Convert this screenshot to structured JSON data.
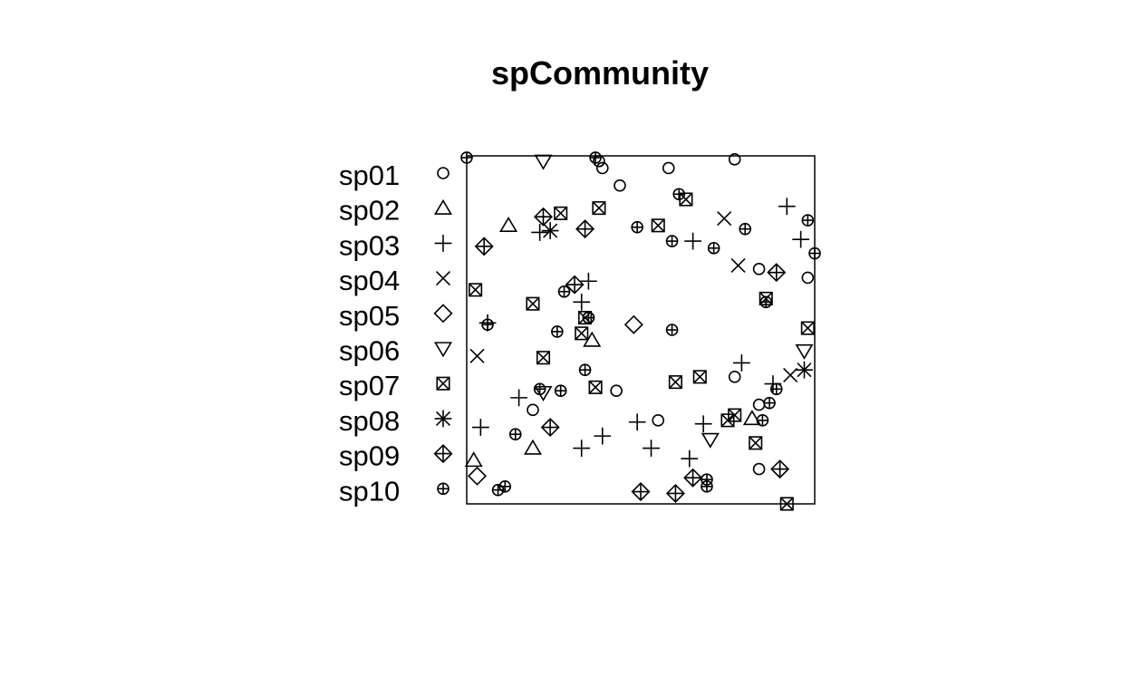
{
  "chart_data": {
    "type": "scatter",
    "title": "spCommunity",
    "xlabel": "",
    "ylabel": "",
    "xlim": [
      0,
      1
    ],
    "ylim": [
      0,
      1
    ],
    "axes": false,
    "grid": false,
    "legend_position": "left",
    "series": [
      {
        "name": "sp01",
        "symbol": "circle",
        "points": [
          [
            0.38,
            0.985
          ],
          [
            0.39,
            0.965
          ],
          [
            0.44,
            0.915
          ],
          [
            0.58,
            0.965
          ],
          [
            0.77,
            0.99
          ],
          [
            0.84,
            0.675
          ],
          [
            0.98,
            0.65
          ],
          [
            0.35,
            0.535
          ],
          [
            0.43,
            0.325
          ],
          [
            0.19,
            0.27
          ],
          [
            0.55,
            0.24
          ],
          [
            0.77,
            0.365
          ],
          [
            0.84,
            0.285
          ],
          [
            0.84,
            0.1
          ]
        ]
      },
      {
        "name": "sp02",
        "symbol": "triangle-up",
        "points": [
          [
            0.12,
            0.8
          ],
          [
            0.36,
            0.47
          ],
          [
            0.19,
            0.16
          ],
          [
            0.02,
            0.125
          ],
          [
            0.82,
            0.245
          ]
        ]
      },
      {
        "name": "sp03",
        "symbol": "plus",
        "points": [
          [
            0.92,
            0.855
          ],
          [
            0.96,
            0.76
          ],
          [
            0.65,
            0.755
          ],
          [
            0.21,
            0.78
          ],
          [
            0.35,
            0.64
          ],
          [
            0.33,
            0.58
          ],
          [
            0.06,
            0.52
          ],
          [
            0.79,
            0.405
          ],
          [
            0.88,
            0.345
          ],
          [
            0.15,
            0.305
          ],
          [
            0.04,
            0.22
          ],
          [
            0.49,
            0.235
          ],
          [
            0.68,
            0.23
          ],
          [
            0.39,
            0.195
          ],
          [
            0.33,
            0.16
          ],
          [
            0.53,
            0.16
          ],
          [
            0.64,
            0.13
          ]
        ]
      },
      {
        "name": "sp04",
        "symbol": "x",
        "points": [
          [
            0.74,
            0.82
          ],
          [
            0.78,
            0.685
          ],
          [
            0.03,
            0.425
          ],
          [
            0.93,
            0.37
          ]
        ]
      },
      {
        "name": "sp05",
        "symbol": "diamond",
        "points": [
          [
            0.48,
            0.515
          ],
          [
            0.03,
            0.08
          ]
        ]
      },
      {
        "name": "sp06",
        "symbol": "triangle-down",
        "points": [
          [
            0.22,
            0.985
          ],
          [
            0.22,
            0.32
          ],
          [
            0.7,
            0.185
          ],
          [
            0.97,
            0.44
          ]
        ]
      },
      {
        "name": "sp07",
        "symbol": "box-x",
        "points": [
          [
            0.27,
            0.835
          ],
          [
            0.38,
            0.85
          ],
          [
            0.63,
            0.875
          ],
          [
            0.55,
            0.8
          ],
          [
            0.025,
            0.615
          ],
          [
            0.19,
            0.575
          ],
          [
            0.34,
            0.535
          ],
          [
            0.33,
            0.49
          ],
          [
            0.22,
            0.42
          ],
          [
            0.37,
            0.335
          ],
          [
            0.6,
            0.35
          ],
          [
            0.67,
            0.365
          ],
          [
            0.86,
            0.59
          ],
          [
            0.98,
            0.505
          ],
          [
            0.75,
            0.24
          ],
          [
            0.77,
            0.255
          ],
          [
            0.83,
            0.175
          ],
          [
            0.92,
            0.0
          ]
        ]
      },
      {
        "name": "sp08",
        "symbol": "asterisk",
        "points": [
          [
            0.24,
            0.785
          ],
          [
            0.97,
            0.385
          ]
        ]
      },
      {
        "name": "sp09",
        "symbol": "diamond-plus",
        "points": [
          [
            0.22,
            0.825
          ],
          [
            0.34,
            0.79
          ],
          [
            0.05,
            0.74
          ],
          [
            0.31,
            0.63
          ],
          [
            0.89,
            0.665
          ],
          [
            0.24,
            0.22
          ],
          [
            0.5,
            0.035
          ],
          [
            0.6,
            0.03
          ],
          [
            0.65,
            0.075
          ],
          [
            0.9,
            0.1
          ]
        ]
      },
      {
        "name": "sp10",
        "symbol": "circle-plus",
        "points": [
          [
            0.0,
            0.995
          ],
          [
            0.37,
            0.995
          ],
          [
            0.61,
            0.89
          ],
          [
            0.98,
            0.815
          ],
          [
            1.0,
            0.72
          ],
          [
            0.49,
            0.795
          ],
          [
            0.59,
            0.755
          ],
          [
            0.71,
            0.735
          ],
          [
            0.8,
            0.79
          ],
          [
            0.28,
            0.61
          ],
          [
            0.86,
            0.58
          ],
          [
            0.35,
            0.535
          ],
          [
            0.06,
            0.515
          ],
          [
            0.26,
            0.495
          ],
          [
            0.59,
            0.5
          ],
          [
            0.34,
            0.385
          ],
          [
            0.21,
            0.33
          ],
          [
            0.27,
            0.325
          ],
          [
            0.89,
            0.33
          ],
          [
            0.87,
            0.29
          ],
          [
            0.85,
            0.24
          ],
          [
            0.14,
            0.2
          ],
          [
            0.09,
            0.04
          ],
          [
            0.11,
            0.05
          ],
          [
            0.69,
            0.07
          ],
          [
            0.69,
            0.05
          ]
        ]
      }
    ]
  }
}
